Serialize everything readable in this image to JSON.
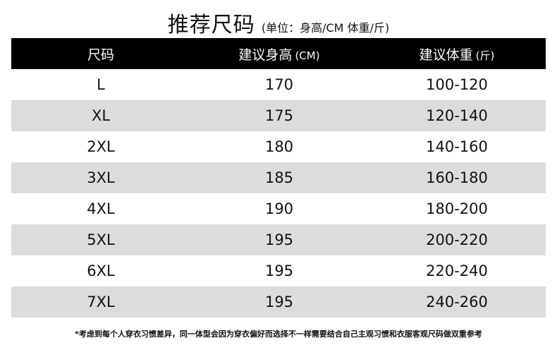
{
  "header": {
    "title": "推荐尺码",
    "subtitle": "(单位：身高/CM 体重/斤)"
  },
  "table": {
    "columns": [
      {
        "label": "尺码",
        "unit": ""
      },
      {
        "label": "建议身高",
        "unit": "(CM)"
      },
      {
        "label": "建议体重",
        "unit": "(斤)"
      }
    ],
    "rows": [
      {
        "size": "L",
        "height": "170",
        "weight": "100-120"
      },
      {
        "size": "XL",
        "height": "175",
        "weight": "120-140"
      },
      {
        "size": "2XL",
        "height": "180",
        "weight": "140-160"
      },
      {
        "size": "3XL",
        "height": "185",
        "weight": "160-180"
      },
      {
        "size": "4XL",
        "height": "190",
        "weight": "180-200"
      },
      {
        "size": "5XL",
        "height": "195",
        "weight": "200-220"
      },
      {
        "size": "6XL",
        "height": "195",
        "weight": "220-240"
      },
      {
        "size": "7XL",
        "height": "195",
        "weight": "240-260"
      }
    ]
  },
  "footnote": "*考虑到每个人穿衣习惯差异，同一体型会因为穿衣偏好而选择不一样需要结合自己主观习惯和衣服客观尺码做双重参考"
}
